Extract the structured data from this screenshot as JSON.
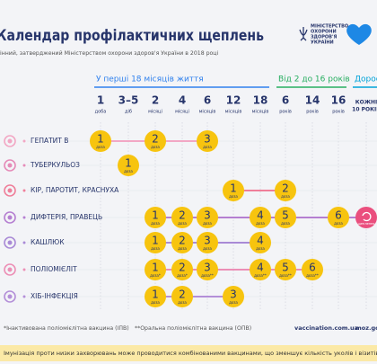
{
  "header": {
    "title": "Календар профілактичних щеплень",
    "subtitle": "інний, затверджений Міністерством охорони здоров'я України в 2018 році",
    "logo": [
      "МІНІСТЕРСТВО",
      "ОХОРОНИ",
      "ЗДОРОВ'Я",
      "УКРАЇНИ"
    ]
  },
  "age_groups": [
    "У перші 18 місяців життя",
    "Від 2 до 16 років",
    "Дорос"
  ],
  "columns": [
    {
      "number": "1",
      "unit": "доба"
    },
    {
      "number": "3–5",
      "unit": "діб"
    },
    {
      "number": "2",
      "unit": "місяці"
    },
    {
      "number": "4",
      "unit": "місяці"
    },
    {
      "number": "6",
      "unit": "місяців"
    },
    {
      "number": "12",
      "unit": "місяців"
    },
    {
      "number": "18",
      "unit": "місяців"
    },
    {
      "number": "6",
      "unit": "років"
    },
    {
      "number": "14",
      "unit": "років"
    },
    {
      "number": "16",
      "unit": "років"
    },
    {
      "number": "КОЖНІ",
      "unit": "10 РОКІВ"
    }
  ],
  "rows": [
    {
      "label": "ГЕПАТИТ В",
      "color": "#f2a7c4",
      "cells": [
        {
          "number": 1,
          "label": "доза"
        },
        null,
        {
          "number": 2,
          "label": "доза"
        },
        null,
        {
          "number": 3,
          "label": "доза"
        },
        null,
        null,
        null,
        null,
        null,
        null
      ]
    },
    {
      "label": "ТУБЕРКУЛЬОЗ",
      "color": "#e58bb8",
      "cells": [
        null,
        {
          "number": 1,
          "label": "доза"
        },
        null,
        null,
        null,
        null,
        null,
        null,
        null,
        null,
        null
      ]
    },
    {
      "label": "КІР, ПАРОТИТ, КРАСНУХА",
      "color": "#ef7f9a",
      "cells": [
        null,
        null,
        null,
        null,
        null,
        {
          "number": 1,
          "label": "доза"
        },
        null,
        {
          "number": 2,
          "label": "доза"
        },
        null,
        null,
        null
      ]
    },
    {
      "label": "ДИФТЕРІЯ, ПРАВЕЦЬ",
      "color": "#b57fd1",
      "cells": [
        null,
        null,
        {
          "number": 1,
          "label": "доза"
        },
        {
          "number": 2,
          "label": "доза"
        },
        {
          "number": 3,
          "label": "доза"
        },
        null,
        {
          "number": 4,
          "label": "доза"
        },
        {
          "number": 5,
          "label": "доза"
        },
        null,
        {
          "number": 6,
          "label": "доза"
        },
        {
          "label": "щеплення"
        }
      ]
    },
    {
      "label": "КАШЛЮК",
      "color": "#a98ad6",
      "cells": [
        null,
        null,
        {
          "number": 1,
          "label": "доза"
        },
        {
          "number": 2,
          "label": "доза"
        },
        {
          "number": 3,
          "label": "доза"
        },
        null,
        {
          "number": 4,
          "label": "доза"
        },
        null,
        null,
        null,
        null
      ]
    },
    {
      "label": "ПОЛІОМІЄЛІТ",
      "color": "#ec8fb6",
      "cells": [
        null,
        null,
        {
          "number": 1,
          "label": "доза*"
        },
        {
          "number": 2,
          "label": "доза*"
        },
        {
          "number": 3,
          "label": "доза**"
        },
        null,
        {
          "number": 4,
          "label": "доза**"
        },
        {
          "number": 5,
          "label": "доза**"
        },
        {
          "number": 6,
          "label": "доза**"
        },
        null,
        null
      ]
    },
    {
      "label": "ХІБ-ІНФЕКЦІЯ",
      "color": "#b48fd8",
      "cells": [
        null,
        null,
        {
          "number": 1,
          "label": "доза"
        },
        {
          "number": 2,
          "label": "доза"
        },
        null,
        {
          "number": 3,
          "label": "доза"
        },
        null,
        null,
        null,
        null,
        null
      ]
    }
  ],
  "footnotes": [
    "*Інактивована поліомієлітна вакцина (ІПВ)",
    "**Оральна поліомієлітна вакцина (ОПВ)"
  ],
  "links": [
    "vaccination.com.ua",
    "moz.gov.ua"
  ],
  "banner": "Імунізація проти низки захворювань може проводитися комбінованими вакцинами, що зменшує кількість уколів і візитів до поліклі"
}
